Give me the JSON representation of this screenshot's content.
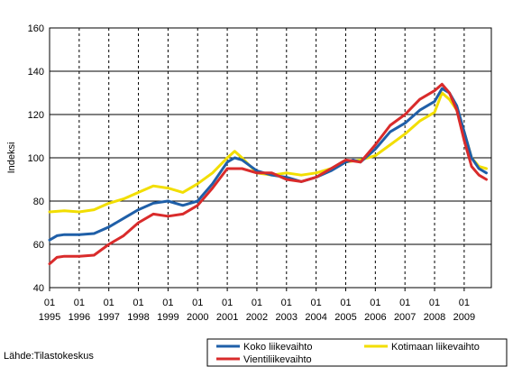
{
  "chart_data": {
    "type": "line",
    "title": "",
    "xlabel": "",
    "ylabel": "Indeksi",
    "ylim": [
      40,
      160
    ],
    "yticks": [
      40,
      60,
      80,
      100,
      120,
      140,
      160
    ],
    "x_tick_years": [
      "1995",
      "1996",
      "1997",
      "1998",
      "1999",
      "2000",
      "2001",
      "2002",
      "2003",
      "2004",
      "2005",
      "2006",
      "2007",
      "2008",
      "2009"
    ],
    "x_tick_month": "01",
    "x_start": "1995-01",
    "x_end": "2009-10",
    "grid": "dashed vertical at January ticks, solid horizontal at y ticks",
    "legend_position": "bottom",
    "series": [
      {
        "name": "Koko liikevaihto",
        "color": "#1f5fa8",
        "points": [
          [
            "1995-01",
            62
          ],
          [
            "1995-04",
            64
          ],
          [
            "1995-07",
            64.5
          ],
          [
            "1996-01",
            64.5
          ],
          [
            "1996-07",
            65
          ],
          [
            "1997-01",
            68
          ],
          [
            "1997-04",
            70
          ],
          [
            "1997-07",
            72
          ],
          [
            "1998-01",
            76
          ],
          [
            "1998-07",
            79
          ],
          [
            "1999-01",
            80
          ],
          [
            "1999-04",
            79
          ],
          [
            "1999-07",
            78
          ],
          [
            "2000-01",
            80
          ],
          [
            "2000-07",
            88
          ],
          [
            "2001-01",
            98
          ],
          [
            "2001-04",
            100
          ],
          [
            "2001-07",
            99
          ],
          [
            "2002-01",
            94
          ],
          [
            "2002-07",
            92
          ],
          [
            "2003-01",
            91
          ],
          [
            "2003-07",
            89
          ],
          [
            "2004-01",
            91
          ],
          [
            "2004-07",
            94
          ],
          [
            "2005-01",
            98
          ],
          [
            "2005-04",
            99
          ],
          [
            "2005-07",
            98
          ],
          [
            "2006-01",
            104
          ],
          [
            "2006-07",
            112
          ],
          [
            "2007-01",
            116
          ],
          [
            "2007-07",
            122
          ],
          [
            "2008-01",
            126
          ],
          [
            "2008-04",
            132
          ],
          [
            "2008-07",
            130
          ],
          [
            "2008-10",
            124
          ],
          [
            "2009-01",
            112
          ],
          [
            "2009-04",
            100
          ],
          [
            "2009-07",
            95
          ],
          [
            "2009-10",
            93
          ]
        ]
      },
      {
        "name": "Kotimaan liikevaihto",
        "color": "#f2de00",
        "points": [
          [
            "1995-01",
            75
          ],
          [
            "1995-07",
            75.5
          ],
          [
            "1996-01",
            75
          ],
          [
            "1996-07",
            76
          ],
          [
            "1997-01",
            79
          ],
          [
            "1997-07",
            81
          ],
          [
            "1998-01",
            84
          ],
          [
            "1998-07",
            87
          ],
          [
            "1999-01",
            86
          ],
          [
            "1999-07",
            84
          ],
          [
            "2000-01",
            88
          ],
          [
            "2000-07",
            93
          ],
          [
            "2001-01",
            100
          ],
          [
            "2001-04",
            103
          ],
          [
            "2001-07",
            100
          ],
          [
            "2002-01",
            93
          ],
          [
            "2002-07",
            92
          ],
          [
            "2003-01",
            93
          ],
          [
            "2003-07",
            92
          ],
          [
            "2004-01",
            93
          ],
          [
            "2004-07",
            95
          ],
          [
            "2005-01",
            98
          ],
          [
            "2005-07",
            99
          ],
          [
            "2006-01",
            101
          ],
          [
            "2006-07",
            106
          ],
          [
            "2007-01",
            111
          ],
          [
            "2007-07",
            117
          ],
          [
            "2008-01",
            121
          ],
          [
            "2008-04",
            130
          ],
          [
            "2008-07",
            127
          ],
          [
            "2008-10",
            122
          ],
          [
            "2009-01",
            112
          ],
          [
            "2009-04",
            100
          ],
          [
            "2009-07",
            96
          ],
          [
            "2009-10",
            95
          ]
        ]
      },
      {
        "name": "Vientiliikevaihto",
        "color": "#d92b2b",
        "points": [
          [
            "1995-01",
            51
          ],
          [
            "1995-04",
            54
          ],
          [
            "1995-07",
            54.5
          ],
          [
            "1996-01",
            54.5
          ],
          [
            "1996-07",
            55
          ],
          [
            "1997-01",
            60
          ],
          [
            "1997-07",
            64
          ],
          [
            "1998-01",
            70
          ],
          [
            "1998-07",
            74
          ],
          [
            "1999-01",
            73
          ],
          [
            "1999-07",
            74
          ],
          [
            "2000-01",
            78
          ],
          [
            "2000-07",
            86
          ],
          [
            "2001-01",
            95
          ],
          [
            "2001-07",
            95
          ],
          [
            "2002-01",
            93
          ],
          [
            "2002-07",
            93
          ],
          [
            "2003-01",
            90
          ],
          [
            "2003-07",
            89
          ],
          [
            "2004-01",
            91
          ],
          [
            "2004-07",
            95
          ],
          [
            "2005-01",
            99
          ],
          [
            "2005-07",
            98
          ],
          [
            "2006-01",
            106
          ],
          [
            "2006-07",
            115
          ],
          [
            "2007-01",
            120
          ],
          [
            "2007-07",
            127
          ],
          [
            "2008-01",
            131
          ],
          [
            "2008-04",
            134
          ],
          [
            "2008-07",
            130
          ],
          [
            "2008-10",
            122
          ],
          [
            "2009-01",
            108
          ],
          [
            "2009-04",
            96
          ],
          [
            "2009-07",
            92
          ],
          [
            "2009-10",
            90
          ]
        ]
      }
    ]
  },
  "source": "Lähde:Tilastokeskus"
}
